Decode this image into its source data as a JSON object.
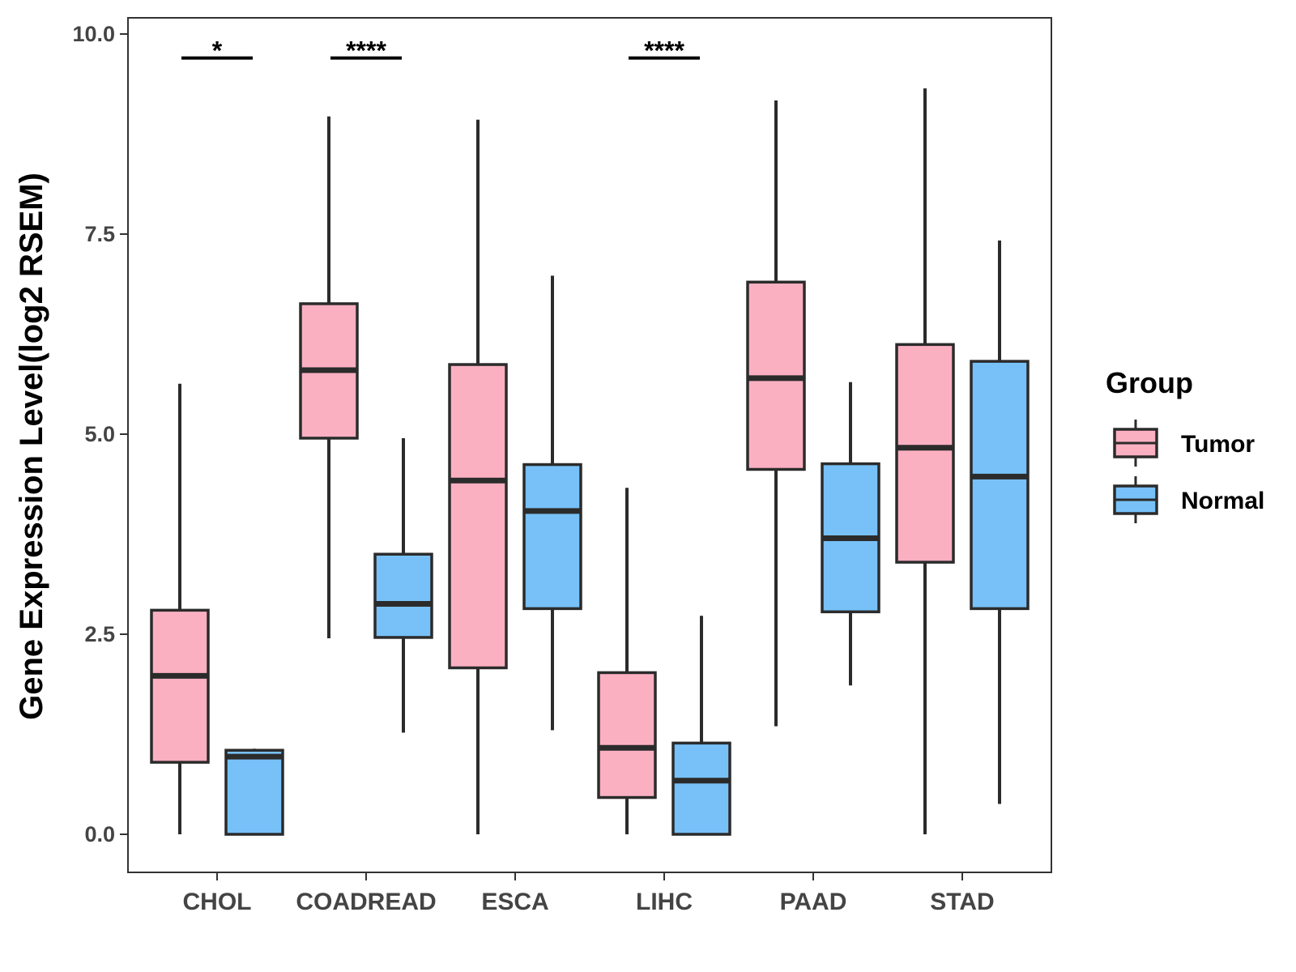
{
  "chart_data": {
    "type": "box",
    "title": "",
    "xlabel": "",
    "ylabel": "Gene Expression Level(log2 RSEM)",
    "ylim": [
      -0.45,
      10.25
    ],
    "yticks": [
      0.0,
      2.5,
      5.0,
      7.5,
      10.0
    ],
    "ytick_labels": [
      "0.0",
      "2.5",
      "5.0",
      "7.5",
      "10.0"
    ],
    "grid": false,
    "categories": [
      "CHOL",
      "COADREAD",
      "ESCA",
      "LIHC",
      "PAAD",
      "STAD"
    ],
    "legend": {
      "title": "Group",
      "position": "right",
      "entries": [
        {
          "name": "Tumor",
          "color": "#fbb0c2"
        },
        {
          "name": "Normal",
          "color": "#77c1f8"
        }
      ]
    },
    "series": [
      {
        "name": "Tumor",
        "color": "#fbb0c2",
        "boxes": [
          {
            "min": 0.0,
            "q1": 0.9,
            "median": 1.98,
            "q3": 2.8,
            "max": 5.63
          },
          {
            "min": 2.45,
            "q1": 4.95,
            "median": 5.8,
            "q3": 6.63,
            "max": 8.97
          },
          {
            "min": 0.0,
            "q1": 2.08,
            "median": 4.42,
            "q3": 5.87,
            "max": 8.93
          },
          {
            "min": 0.0,
            "q1": 0.46,
            "median": 1.08,
            "q3": 2.02,
            "max": 4.33
          },
          {
            "min": 1.35,
            "q1": 4.56,
            "median": 5.7,
            "q3": 6.9,
            "max": 9.17
          },
          {
            "min": 0.0,
            "q1": 3.4,
            "median": 4.83,
            "q3": 6.12,
            "max": 9.32
          }
        ]
      },
      {
        "name": "Normal",
        "color": "#77c1f8",
        "boxes": [
          {
            "min": 0.0,
            "q1": 0.0,
            "median": 0.97,
            "q3": 1.05,
            "max": 1.07
          },
          {
            "min": 1.27,
            "q1": 2.46,
            "median": 2.88,
            "q3": 3.5,
            "max": 4.95
          },
          {
            "min": 1.3,
            "q1": 2.82,
            "median": 4.04,
            "q3": 4.62,
            "max": 6.98
          },
          {
            "min": 0.0,
            "q1": 0.0,
            "median": 0.67,
            "q3": 1.14,
            "max": 2.73
          },
          {
            "min": 1.86,
            "q1": 2.78,
            "median": 3.7,
            "q3": 4.63,
            "max": 5.65
          },
          {
            "min": 0.38,
            "q1": 2.82,
            "median": 4.47,
            "q3": 5.91,
            "max": 7.42
          }
        ]
      }
    ],
    "annotations": [
      {
        "category": "CHOL",
        "text": "*",
        "y": 9.7
      },
      {
        "category": "COADREAD",
        "text": "****",
        "y": 9.7
      },
      {
        "category": "LIHC",
        "text": "****",
        "y": 9.7
      }
    ]
  }
}
